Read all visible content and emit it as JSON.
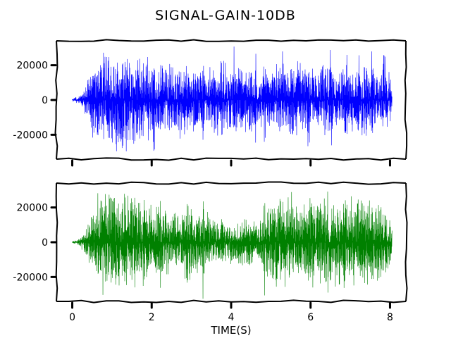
{
  "chart_data": {
    "type": "line",
    "title": "SIGNAL-GAIN-10DB",
    "xlabel": "TIME(S)",
    "xlim": [
      -0.4,
      8.4
    ],
    "x_ticks": [
      0,
      2,
      4,
      6,
      8
    ],
    "x_tick_labels": [
      "0",
      "2",
      "4",
      "6",
      "8"
    ],
    "y_ticks": [
      -20000,
      0,
      20000
    ],
    "y_tick_labels": [
      "-20000",
      "0",
      "20000"
    ],
    "ylim": [
      -34000,
      34000
    ],
    "grid": false,
    "colors": {
      "top": "#0000ff",
      "bottom": "#008000"
    },
    "panels": [
      {
        "name": "",
        "color": "#0000ff",
        "clip": 32767,
        "envelope": {
          "t": [
            0.0,
            0.1,
            0.2,
            0.28,
            0.35,
            0.45,
            0.55,
            0.6,
            0.7,
            0.8,
            1.0,
            1.2,
            1.4,
            1.6,
            1.8,
            2.0,
            2.2,
            2.4,
            2.6,
            2.8,
            3.0,
            3.2,
            3.4,
            3.6,
            3.8,
            4.0,
            4.2,
            4.4,
            4.6,
            4.8,
            5.0,
            5.2,
            5.4,
            5.6,
            5.8,
            6.0,
            6.2,
            6.4,
            6.6,
            6.8,
            7.0,
            7.2,
            7.4,
            7.6,
            7.8,
            8.0,
            8.05
          ],
          "amp": [
            800,
            2000,
            3500,
            6000,
            12000,
            20000,
            28000,
            32767,
            32767,
            32767,
            32767,
            32767,
            32767,
            30000,
            27000,
            24000,
            23000,
            25000,
            24000,
            22000,
            24000,
            21000,
            18000,
            22000,
            23000,
            21000,
            20000,
            24000,
            18000,
            16000,
            20000,
            22000,
            19000,
            24000,
            22000,
            18000,
            21000,
            23000,
            20000,
            22000,
            19000,
            21000,
            24000,
            18000,
            19000,
            17000,
            10000
          ]
        },
        "bursts": [
          1.55,
          1.75,
          2.05,
          2.45,
          2.95,
          3.3,
          3.55,
          3.75,
          4.1,
          4.6,
          4.85,
          5.3,
          5.55,
          5.95,
          6.5,
          6.9,
          7.2,
          7.55,
          7.85
        ]
      },
      {
        "name": "",
        "color": "#008000",
        "clip": 32767,
        "envelope": {
          "t": [
            0.0,
            0.1,
            0.2,
            0.28,
            0.35,
            0.45,
            0.55,
            0.65,
            0.75,
            0.9,
            1.1,
            1.3,
            1.5,
            1.7,
            1.9,
            2.1,
            2.3,
            2.5,
            2.7,
            2.9,
            3.1,
            3.3,
            3.5,
            3.7,
            3.9,
            4.1,
            4.3,
            4.5,
            4.7,
            4.9,
            5.1,
            5.3,
            5.5,
            5.7,
            5.9,
            6.1,
            6.3,
            6.5,
            6.7,
            6.9,
            7.1,
            7.3,
            7.5,
            7.7,
            7.9,
            8.05
          ],
          "amp": [
            800,
            1800,
            3200,
            5500,
            10000,
            16000,
            22000,
            30000,
            32767,
            32767,
            32767,
            32767,
            30000,
            28000,
            26000,
            25000,
            24000,
            20000,
            18000,
            26000,
            23000,
            20000,
            17000,
            15000,
            14000,
            13000,
            16000,
            14000,
            12000,
            27000,
            28000,
            30000,
            27000,
            24000,
            26000,
            30000,
            31000,
            26000,
            28000,
            31000,
            26000,
            29000,
            27000,
            25000,
            24000,
            12000
          ]
        },
        "bursts": [
          1.45,
          1.8,
          2.2,
          2.9,
          3.3,
          4.85,
          5.2,
          5.55,
          5.9,
          6.15,
          6.45,
          6.8,
          7.1,
          7.35,
          7.7
        ]
      }
    ]
  }
}
